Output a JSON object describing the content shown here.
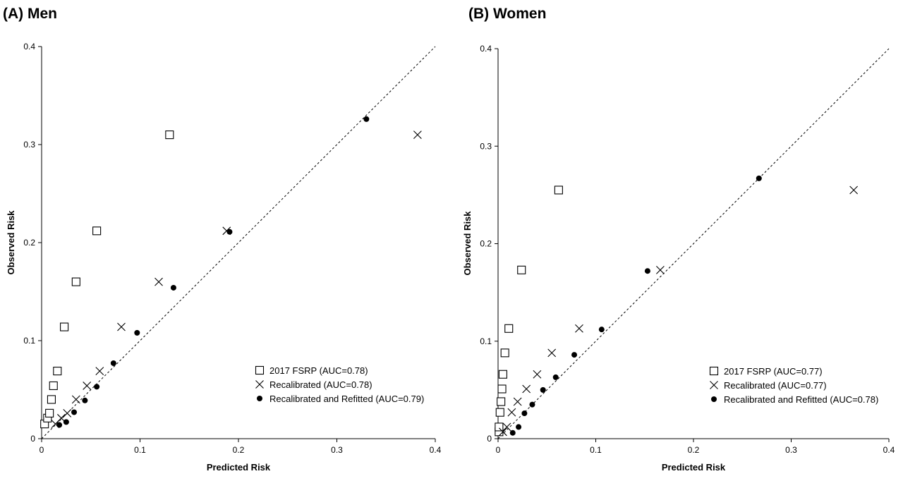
{
  "chart_data": [
    {
      "type": "scatter",
      "title": "(A) Men",
      "xlabel": "Predicted Risk",
      "ylabel": "Observed Risk",
      "xlim": [
        0,
        0.4
      ],
      "ylim": [
        0,
        0.4
      ],
      "xticks": [
        {
          "value": 0,
          "label": "0"
        },
        {
          "value": 0.1,
          "label": "0.1"
        },
        {
          "value": 0.2,
          "label": "0.2"
        },
        {
          "value": 0.3,
          "label": "0.3"
        },
        {
          "value": 0.4,
          "label": "0.4"
        }
      ],
      "yticks": [
        {
          "value": 0,
          "label": "0"
        },
        {
          "value": 0.1,
          "label": "0.1"
        },
        {
          "value": 0.2,
          "label": "0.2"
        },
        {
          "value": 0.3,
          "label": "0.3"
        },
        {
          "value": 0.4,
          "label": "0.4"
        }
      ],
      "grid": false,
      "reference_line": "y = x, dashed",
      "legend_position": "bottom-right",
      "series": [
        {
          "name": "2017 FSRP (AUC=0.78)",
          "marker": "square",
          "points": [
            [
              0.003,
              0.015
            ],
            [
              0.006,
              0.021
            ],
            [
              0.008,
              0.026
            ],
            [
              0.01,
              0.04
            ],
            [
              0.012,
              0.054
            ],
            [
              0.016,
              0.069
            ],
            [
              0.023,
              0.114
            ],
            [
              0.035,
              0.16
            ],
            [
              0.056,
              0.212
            ],
            [
              0.13,
              0.31
            ]
          ]
        },
        {
          "name": "Recalibrated (AUC=0.78)",
          "marker": "cross",
          "points": [
            [
              0.014,
              0.015
            ],
            [
              0.02,
              0.021
            ],
            [
              0.026,
              0.026
            ],
            [
              0.035,
              0.04
            ],
            [
              0.046,
              0.054
            ],
            [
              0.059,
              0.069
            ],
            [
              0.081,
              0.114
            ],
            [
              0.119,
              0.16
            ],
            [
              0.188,
              0.212
            ],
            [
              0.382,
              0.31
            ]
          ]
        },
        {
          "name": "Recalibrated and Refitted (AUC=0.79)",
          "marker": "circle",
          "points": [
            [
              0.018,
              0.014
            ],
            [
              0.025,
              0.017
            ],
            [
              0.033,
              0.027
            ],
            [
              0.044,
              0.039
            ],
            [
              0.056,
              0.053
            ],
            [
              0.073,
              0.077
            ],
            [
              0.097,
              0.108
            ],
            [
              0.134,
              0.154
            ],
            [
              0.191,
              0.211
            ],
            [
              0.33,
              0.326
            ]
          ]
        }
      ]
    },
    {
      "type": "scatter",
      "title": "(B) Women",
      "xlabel": "Predicted Risk",
      "ylabel": "Observed Risk",
      "xlim": [
        0,
        0.4
      ],
      "ylim": [
        0,
        0.4
      ],
      "xticks": [
        {
          "value": 0,
          "label": "0"
        },
        {
          "value": 0.1,
          "label": "0.1"
        },
        {
          "value": 0.2,
          "label": "0.2"
        },
        {
          "value": 0.3,
          "label": "0.3"
        },
        {
          "value": 0.4,
          "label": "0.4"
        }
      ],
      "yticks": [
        {
          "value": 0,
          "label": "0"
        },
        {
          "value": 0.1,
          "label": "0.1"
        },
        {
          "value": 0.2,
          "label": "0.2"
        },
        {
          "value": 0.3,
          "label": "0.3"
        },
        {
          "value": 0.4,
          "label": "0.4"
        }
      ],
      "grid": false,
      "reference_line": "y = x, dashed",
      "legend_position": "bottom-right",
      "series": [
        {
          "name": "2017 FSRP (AUC=0.77)",
          "marker": "square",
          "points": [
            [
              0.001,
              0.007
            ],
            [
              0.001,
              0.012
            ],
            [
              0.002,
              0.027
            ],
            [
              0.003,
              0.038
            ],
            [
              0.004,
              0.051
            ],
            [
              0.005,
              0.066
            ],
            [
              0.007,
              0.088
            ],
            [
              0.011,
              0.113
            ],
            [
              0.024,
              0.173
            ],
            [
              0.062,
              0.255
            ]
          ]
        },
        {
          "name": "Recalibrated (AUC=0.77)",
          "marker": "cross",
          "points": [
            [
              0.005,
              0.007
            ],
            [
              0.009,
              0.012
            ],
            [
              0.014,
              0.027
            ],
            [
              0.02,
              0.038
            ],
            [
              0.029,
              0.051
            ],
            [
              0.04,
              0.066
            ],
            [
              0.055,
              0.088
            ],
            [
              0.083,
              0.113
            ],
            [
              0.166,
              0.173
            ],
            [
              0.364,
              0.255
            ]
          ]
        },
        {
          "name": "Recalibrated and Refitted (AUC=0.78)",
          "marker": "circle",
          "points": [
            [
              0.015,
              0.006
            ],
            [
              0.021,
              0.012
            ],
            [
              0.027,
              0.026
            ],
            [
              0.035,
              0.035
            ],
            [
              0.046,
              0.05
            ],
            [
              0.059,
              0.063
            ],
            [
              0.078,
              0.086
            ],
            [
              0.106,
              0.112
            ],
            [
              0.153,
              0.172
            ],
            [
              0.267,
              0.267
            ]
          ]
        }
      ]
    }
  ]
}
